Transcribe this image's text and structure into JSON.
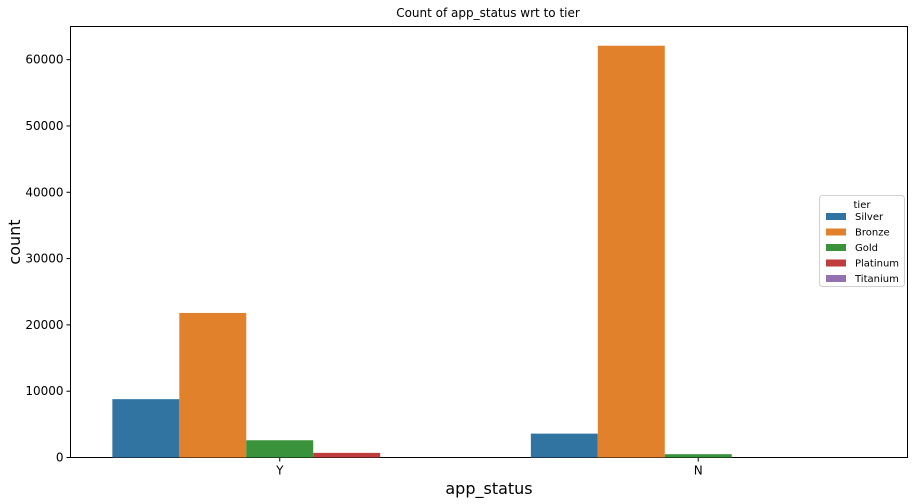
{
  "chart_data": {
    "type": "bar",
    "title": "Count of app_status wrt to tier",
    "xlabel": "app_status",
    "ylabel": "count",
    "categories": [
      "Y",
      "N"
    ],
    "ylim": [
      0,
      65000
    ],
    "yticks": [
      0,
      10000,
      20000,
      30000,
      40000,
      50000,
      60000
    ],
    "grid": false,
    "legend": {
      "title": "tier",
      "position": "top-right"
    },
    "series": [
      {
        "name": "Silver",
        "color": "#3274a1",
        "values": [
          8800,
          3600
        ]
      },
      {
        "name": "Bronze",
        "color": "#e1812c",
        "values": [
          21800,
          62100
        ]
      },
      {
        "name": "Gold",
        "color": "#3a923a",
        "values": [
          2600,
          500
        ]
      },
      {
        "name": "Platinum",
        "color": "#c03d3e",
        "values": [
          700,
          0
        ]
      },
      {
        "name": "Titanium",
        "color": "#9372b2",
        "values": [
          0,
          0
        ]
      }
    ]
  }
}
